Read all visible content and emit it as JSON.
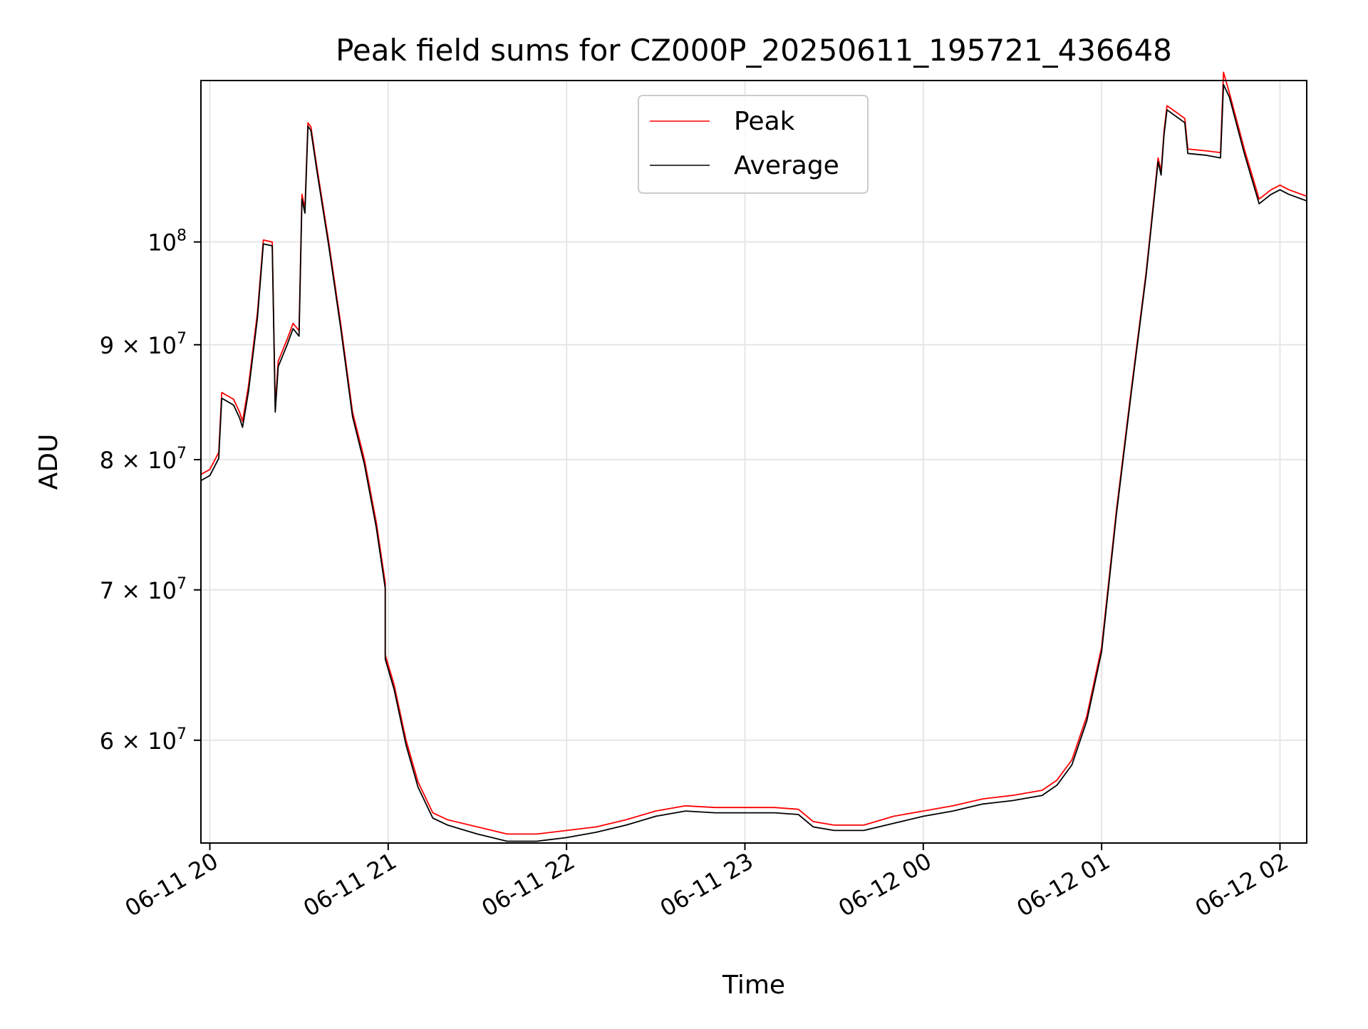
{
  "chart_data": {
    "type": "line",
    "title": "Peak field sums for CZ000P_20250611_195721_436648",
    "xlabel": "Time",
    "ylabel": "ADU",
    "y_scale": "log",
    "grid": true,
    "legend_position": "top-center",
    "xlim": [
      "2025-06-11 19:57",
      "2025-06-12 02:09"
    ],
    "ylim": [
      54000000,
      118000000
    ],
    "x_ticks": [
      {
        "value": "2025-06-11 20:00",
        "label": "06-11 20"
      },
      {
        "value": "2025-06-11 21:00",
        "label": "06-11 21"
      },
      {
        "value": "2025-06-11 22:00",
        "label": "06-11 22"
      },
      {
        "value": "2025-06-11 23:00",
        "label": "06-11 23"
      },
      {
        "value": "2025-06-12 00:00",
        "label": "06-12 00"
      },
      {
        "value": "2025-06-12 01:00",
        "label": "06-12 01"
      },
      {
        "value": "2025-06-12 02:00",
        "label": "06-12 02"
      }
    ],
    "y_ticks": [
      {
        "value": 60000000,
        "label": "6 × 10",
        "exp": "7"
      },
      {
        "value": 70000000,
        "label": "7 × 10",
        "exp": "7"
      },
      {
        "value": 80000000,
        "label": "8 × 10",
        "exp": "7"
      },
      {
        "value": 90000000,
        "label": "9 × 10",
        "exp": "7"
      },
      {
        "value": 100000000,
        "label": "10",
        "exp": "8"
      }
    ],
    "series": [
      {
        "name": "Peak",
        "color": "#ff0000",
        "points": [
          [
            "2025-06-11 19:57",
            78800000
          ],
          [
            "2025-06-11 20:00",
            79200000
          ],
          [
            "2025-06-11 20:03",
            80600000
          ],
          [
            "2025-06-11 20:04",
            85700000
          ],
          [
            "2025-06-11 20:08",
            85100000
          ],
          [
            "2025-06-11 20:10",
            84000000
          ],
          [
            "2025-06-11 20:11",
            83200000
          ],
          [
            "2025-06-11 20:13",
            86300000
          ],
          [
            "2025-06-11 20:16",
            93000000
          ],
          [
            "2025-06-11 20:18",
            100200000
          ],
          [
            "2025-06-11 20:21",
            100000000
          ],
          [
            "2025-06-11 20:22",
            84500000
          ],
          [
            "2025-06-11 20:23",
            88500000
          ],
          [
            "2025-06-11 20:26",
            90500000
          ],
          [
            "2025-06-11 20:28",
            92000000
          ],
          [
            "2025-06-11 20:30",
            91300000
          ],
          [
            "2025-06-11 20:31",
            105000000
          ],
          [
            "2025-06-11 20:32",
            103500000
          ],
          [
            "2025-06-11 20:33",
            113000000
          ],
          [
            "2025-06-11 20:34",
            112500000
          ],
          [
            "2025-06-11 20:36",
            108000000
          ],
          [
            "2025-06-11 20:40",
            100000000
          ],
          [
            "2025-06-11 20:44",
            92000000
          ],
          [
            "2025-06-11 20:48",
            84000000
          ],
          [
            "2025-06-11 20:52",
            80000000
          ],
          [
            "2025-06-11 20:56",
            75000000
          ],
          [
            "2025-06-11 20:59",
            70500000
          ],
          [
            "2025-06-11 20:59",
            65500000
          ],
          [
            "2025-06-11 21:02",
            63500000
          ],
          [
            "2025-06-11 21:06",
            60000000
          ],
          [
            "2025-06-11 21:10",
            57500000
          ],
          [
            "2025-06-11 21:15",
            55700000
          ],
          [
            "2025-06-11 21:20",
            55300000
          ],
          [
            "2025-06-11 21:30",
            54900000
          ],
          [
            "2025-06-11 21:40",
            54500000
          ],
          [
            "2025-06-11 21:50",
            54500000
          ],
          [
            "2025-06-11 22:00",
            54700000
          ],
          [
            "2025-06-11 22:10",
            54900000
          ],
          [
            "2025-06-11 22:20",
            55300000
          ],
          [
            "2025-06-11 22:30",
            55800000
          ],
          [
            "2025-06-11 22:40",
            56100000
          ],
          [
            "2025-06-11 22:50",
            56000000
          ],
          [
            "2025-06-11 23:00",
            56000000
          ],
          [
            "2025-06-11 23:10",
            56000000
          ],
          [
            "2025-06-11 23:18",
            55900000
          ],
          [
            "2025-06-11 23:23",
            55200000
          ],
          [
            "2025-06-11 23:30",
            55000000
          ],
          [
            "2025-06-11 23:40",
            55000000
          ],
          [
            "2025-06-11 23:50",
            55500000
          ],
          [
            "2025-06-12 00:00",
            55800000
          ],
          [
            "2025-06-12 00:10",
            56100000
          ],
          [
            "2025-06-12 00:20",
            56500000
          ],
          [
            "2025-06-12 00:30",
            56700000
          ],
          [
            "2025-06-12 00:40",
            57000000
          ],
          [
            "2025-06-12 00:45",
            57600000
          ],
          [
            "2025-06-12 00:50",
            58800000
          ],
          [
            "2025-06-12 00:55",
            61500000
          ],
          [
            "2025-06-12 01:00",
            66000000
          ],
          [
            "2025-06-12 01:05",
            76000000
          ],
          [
            "2025-06-12 01:10",
            86000000
          ],
          [
            "2025-06-12 01:15",
            97000000
          ],
          [
            "2025-06-12 01:19",
            109000000
          ],
          [
            "2025-06-12 01:20",
            107500000
          ],
          [
            "2025-06-12 01:21",
            112000000
          ],
          [
            "2025-06-12 01:22",
            115000000
          ],
          [
            "2025-06-12 01:26",
            114000000
          ],
          [
            "2025-06-12 01:28",
            113500000
          ],
          [
            "2025-06-12 01:29",
            110000000
          ],
          [
            "2025-06-12 01:35",
            109800000
          ],
          [
            "2025-06-12 01:40",
            109600000
          ],
          [
            "2025-06-12 01:41",
            119000000
          ],
          [
            "2025-06-12 01:43",
            116500000
          ],
          [
            "2025-06-12 01:48",
            110000000
          ],
          [
            "2025-06-12 01:53",
            104500000
          ],
          [
            "2025-06-12 01:57",
            105500000
          ],
          [
            "2025-06-12 02:00",
            106000000
          ],
          [
            "2025-06-12 02:03",
            105500000
          ],
          [
            "2025-06-12 02:09",
            104800000
          ]
        ]
      },
      {
        "name": "Average",
        "color": "#000000",
        "points": [
          [
            "2025-06-11 19:57",
            78300000
          ],
          [
            "2025-06-11 20:00",
            78700000
          ],
          [
            "2025-06-11 20:03",
            80100000
          ],
          [
            "2025-06-11 20:04",
            85200000
          ],
          [
            "2025-06-11 20:08",
            84600000
          ],
          [
            "2025-06-11 20:10",
            83500000
          ],
          [
            "2025-06-11 20:11",
            82700000
          ],
          [
            "2025-06-11 20:13",
            85800000
          ],
          [
            "2025-06-11 20:16",
            92500000
          ],
          [
            "2025-06-11 20:18",
            99800000
          ],
          [
            "2025-06-11 20:21",
            99600000
          ],
          [
            "2025-06-11 20:22",
            84000000
          ],
          [
            "2025-06-11 20:23",
            88000000
          ],
          [
            "2025-06-11 20:26",
            90000000
          ],
          [
            "2025-06-11 20:28",
            91500000
          ],
          [
            "2025-06-11 20:30",
            90800000
          ],
          [
            "2025-06-11 20:31",
            104500000
          ],
          [
            "2025-06-11 20:32",
            103000000
          ],
          [
            "2025-06-11 20:33",
            112600000
          ],
          [
            "2025-06-11 20:34",
            112100000
          ],
          [
            "2025-06-11 20:36",
            107600000
          ],
          [
            "2025-06-11 20:40",
            99600000
          ],
          [
            "2025-06-11 20:44",
            91600000
          ],
          [
            "2025-06-11 20:48",
            83600000
          ],
          [
            "2025-06-11 20:52",
            79600000
          ],
          [
            "2025-06-11 20:56",
            74600000
          ],
          [
            "2025-06-11 20:59",
            70100000
          ],
          [
            "2025-06-11 20:59",
            65200000
          ],
          [
            "2025-06-11 21:02",
            63200000
          ],
          [
            "2025-06-11 21:06",
            59700000
          ],
          [
            "2025-06-11 21:10",
            57200000
          ],
          [
            "2025-06-11 21:15",
            55400000
          ],
          [
            "2025-06-11 21:20",
            55000000
          ],
          [
            "2025-06-11 21:30",
            54500000
          ],
          [
            "2025-06-11 21:40",
            54100000
          ],
          [
            "2025-06-11 21:50",
            54100000
          ],
          [
            "2025-06-11 22:00",
            54300000
          ],
          [
            "2025-06-11 22:10",
            54600000
          ],
          [
            "2025-06-11 22:20",
            55000000
          ],
          [
            "2025-06-11 22:30",
            55500000
          ],
          [
            "2025-06-11 22:40",
            55800000
          ],
          [
            "2025-06-11 22:50",
            55700000
          ],
          [
            "2025-06-11 23:00",
            55700000
          ],
          [
            "2025-06-11 23:10",
            55700000
          ],
          [
            "2025-06-11 23:18",
            55600000
          ],
          [
            "2025-06-11 23:23",
            54900000
          ],
          [
            "2025-06-11 23:30",
            54700000
          ],
          [
            "2025-06-11 23:40",
            54700000
          ],
          [
            "2025-06-11 23:50",
            55100000
          ],
          [
            "2025-06-12 00:00",
            55500000
          ],
          [
            "2025-06-12 00:10",
            55800000
          ],
          [
            "2025-06-12 00:20",
            56200000
          ],
          [
            "2025-06-12 00:30",
            56400000
          ],
          [
            "2025-06-12 00:40",
            56700000
          ],
          [
            "2025-06-12 00:45",
            57300000
          ],
          [
            "2025-06-12 00:50",
            58500000
          ],
          [
            "2025-06-12 00:55",
            61200000
          ],
          [
            "2025-06-12 01:00",
            65700000
          ],
          [
            "2025-06-12 01:05",
            75700000
          ],
          [
            "2025-06-12 01:10",
            85700000
          ],
          [
            "2025-06-12 01:15",
            96700000
          ],
          [
            "2025-06-12 01:19",
            108600000
          ],
          [
            "2025-06-12 01:20",
            107100000
          ],
          [
            "2025-06-12 01:21",
            111600000
          ],
          [
            "2025-06-12 01:22",
            114500000
          ],
          [
            "2025-06-12 01:26",
            113500000
          ],
          [
            "2025-06-12 01:28",
            113000000
          ],
          [
            "2025-06-12 01:29",
            109500000
          ],
          [
            "2025-06-12 01:35",
            109300000
          ],
          [
            "2025-06-12 01:40",
            109000000
          ],
          [
            "2025-06-12 01:41",
            117500000
          ],
          [
            "2025-06-12 01:43",
            116000000
          ],
          [
            "2025-06-12 01:48",
            109500000
          ],
          [
            "2025-06-12 01:53",
            104000000
          ],
          [
            "2025-06-12 01:57",
            105000000
          ],
          [
            "2025-06-12 02:00",
            105500000
          ],
          [
            "2025-06-12 02:03",
            105000000
          ],
          [
            "2025-06-12 02:09",
            104300000
          ]
        ]
      }
    ]
  }
}
